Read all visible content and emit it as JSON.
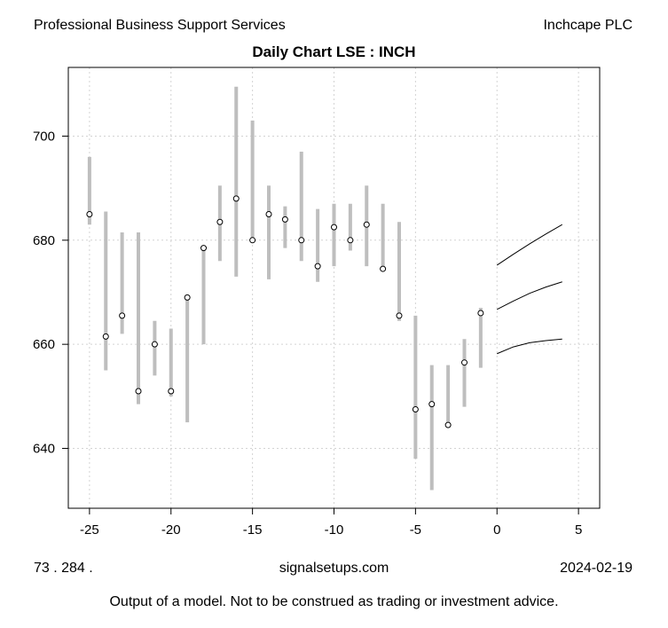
{
  "header": {
    "sector": "Professional Business Support Services",
    "company": "Inchcape PLC"
  },
  "footer": {
    "left": "73 . 284 .",
    "center": "signalsetups.com",
    "right": "2024-02-19",
    "disclaimer": "Output of a model.  Not to be construed as trading or investment advice."
  },
  "chart_data": {
    "type": "candlestick-range",
    "title": "Daily Chart LSE : INCH",
    "xlabel": "",
    "ylabel": "",
    "xlim": [
      -26.3,
      6.3
    ],
    "ylim": [
      628.5,
      713.2
    ],
    "x_ticks": [
      -25,
      -20,
      -15,
      -10,
      -5,
      0,
      5
    ],
    "y_ticks": [
      640,
      660,
      680,
      700
    ],
    "grid": true,
    "range_color": "#bebebe",
    "bars": [
      {
        "x": -25,
        "low": 683,
        "high": 696,
        "close": 685
      },
      {
        "x": -24,
        "low": 655,
        "high": 685.5,
        "close": 661.5
      },
      {
        "x": -23,
        "low": 662,
        "high": 681.5,
        "close": 665.5
      },
      {
        "x": -22,
        "low": 648.5,
        "high": 681.5,
        "close": 651
      },
      {
        "x": -21,
        "low": 654,
        "high": 664.5,
        "close": 660
      },
      {
        "x": -20,
        "low": 650,
        "high": 663,
        "close": 651
      },
      {
        "x": -19,
        "low": 645,
        "high": 669.5,
        "close": 669
      },
      {
        "x": -18,
        "low": 660,
        "high": 679,
        "close": 678.5
      },
      {
        "x": -17,
        "low": 676,
        "high": 690.5,
        "close": 683.5
      },
      {
        "x": -16,
        "low": 673,
        "high": 709.5,
        "close": 688
      },
      {
        "x": -15,
        "low": 680,
        "high": 703,
        "close": 680
      },
      {
        "x": -14,
        "low": 672.5,
        "high": 690.5,
        "close": 685
      },
      {
        "x": -13,
        "low": 678.5,
        "high": 686.5,
        "close": 684
      },
      {
        "x": -12,
        "low": 676,
        "high": 697,
        "close": 680
      },
      {
        "x": -11,
        "low": 672,
        "high": 686,
        "close": 675
      },
      {
        "x": -10,
        "low": 675,
        "high": 687,
        "close": 682.5
      },
      {
        "x": -9,
        "low": 678,
        "high": 687,
        "close": 680
      },
      {
        "x": -8,
        "low": 675,
        "high": 690.5,
        "close": 683
      },
      {
        "x": -7,
        "low": 674,
        "high": 687,
        "close": 674.5
      },
      {
        "x": -6,
        "low": 664.5,
        "high": 683.5,
        "close": 665.5
      },
      {
        "x": -5,
        "low": 638,
        "high": 665.5,
        "close": 647.5
      },
      {
        "x": -4,
        "low": 632,
        "high": 656,
        "close": 648.5
      },
      {
        "x": -3,
        "low": 644,
        "high": 656,
        "close": 644.5
      },
      {
        "x": -2,
        "low": 648,
        "high": 661,
        "close": 656.5
      },
      {
        "x": -1,
        "low": 655.5,
        "high": 667,
        "close": 666
      }
    ],
    "forecast": {
      "x": [
        0,
        1,
        2,
        3,
        4
      ],
      "upper": [
        675.2,
        677.3,
        679.3,
        681.2,
        683
      ],
      "middle": [
        666.7,
        668.3,
        669.8,
        671,
        672
      ],
      "lower": [
        658.2,
        659.5,
        660.3,
        660.7,
        661
      ]
    }
  }
}
